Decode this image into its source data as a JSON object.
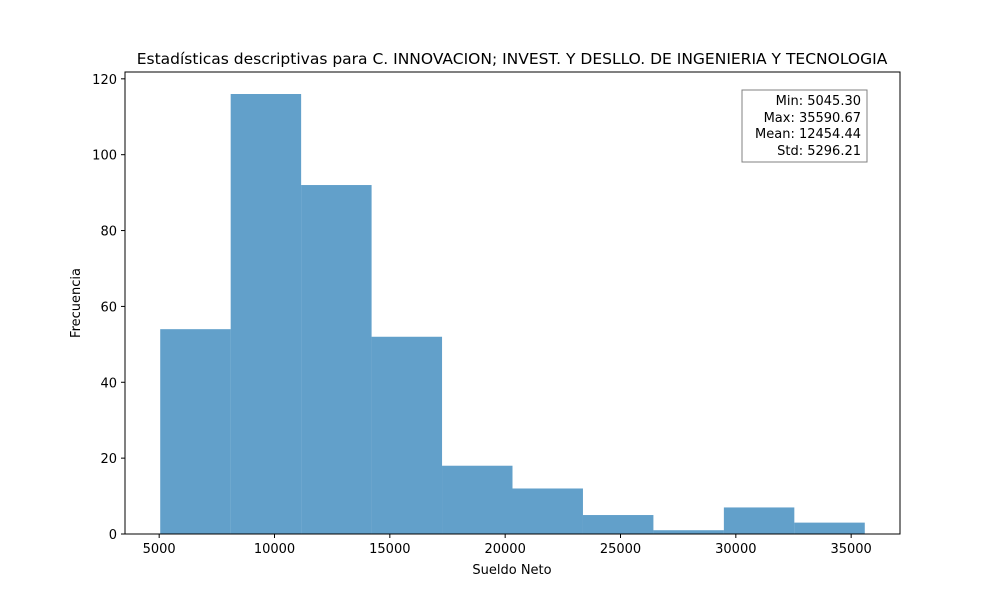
{
  "chart_data": {
    "type": "bar",
    "title": "Estadísticas descriptivas para C. INNOVACION; INVEST. Y DESLLO. DE INGENIERIA Y TECNOLOGIA",
    "xlabel": "Sueldo Neto",
    "ylabel": "Frecuencia",
    "bin_edges": [
      5045.3,
      8099.84,
      11154.38,
      14208.91,
      17263.45,
      20317.99,
      23372.53,
      26427.06,
      29481.6,
      32536.13,
      35590.67
    ],
    "values": [
      54,
      116,
      92,
      52,
      18,
      12,
      5,
      1,
      7,
      3
    ],
    "xlim": [
      3518.57,
      37117.4
    ],
    "ylim": [
      0,
      121.8
    ],
    "xticks": [
      5000,
      10000,
      15000,
      20000,
      25000,
      30000,
      35000
    ],
    "xtick_labels": [
      "5000",
      "10000",
      "15000",
      "20000",
      "25000",
      "30000",
      "35000"
    ],
    "yticks": [
      0,
      20,
      40,
      60,
      80,
      100,
      120
    ],
    "ytick_labels": [
      "0",
      "20",
      "40",
      "60",
      "80",
      "100",
      "120"
    ],
    "bar_color": "#1f77b4",
    "bar_alpha": 0.7,
    "grid": false,
    "stats_box_position": "top-right",
    "stats": [
      "Min: 5045.30",
      "Max: 35590.67",
      "Mean: 12454.44",
      "Std: 5296.21"
    ]
  }
}
